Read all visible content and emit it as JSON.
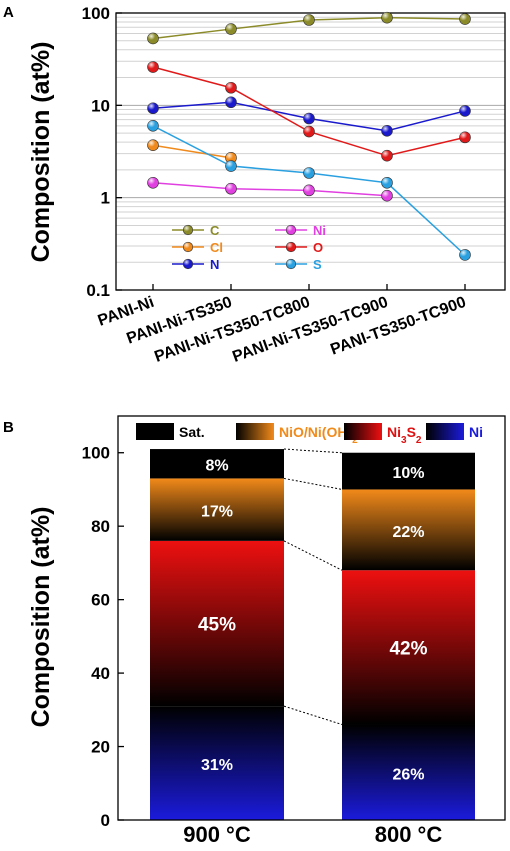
{
  "chart_data": [
    {
      "panel": "A",
      "type": "line",
      "ylabel": "Composition (at%)",
      "yscale": "log",
      "ylim": [
        0.1,
        100
      ],
      "yticks": [
        "0.1",
        "1",
        "10",
        "100"
      ],
      "categories": [
        "PANI-Ni",
        "PANI-Ni-TS350",
        "PANI-Ni-TS350-TC800",
        "PANI-Ni-TS350-TC900",
        "PANI-TS350-TC900"
      ],
      "grid": true,
      "legend_position": "lower-left",
      "series": [
        {
          "name": "C",
          "color": "#8b8b2a",
          "values": [
            53,
            67,
            84,
            89,
            86
          ]
        },
        {
          "name": "Cl",
          "color": "#f08a1c",
          "values": [
            3.7,
            2.7,
            null,
            null,
            null
          ]
        },
        {
          "name": "N",
          "color": "#1a1acc",
          "values": [
            9.3,
            10.8,
            7.2,
            5.3,
            8.7
          ]
        },
        {
          "name": "Ni",
          "color": "#e040e0",
          "values": [
            1.45,
            1.25,
            1.2,
            1.05,
            null
          ]
        },
        {
          "name": "O",
          "color": "#e01a1a",
          "values": [
            26,
            15.5,
            5.2,
            2.85,
            4.5
          ]
        },
        {
          "name": "S",
          "color": "#2aa0e0",
          "values": [
            6.0,
            2.2,
            1.85,
            1.45,
            0.24
          ]
        }
      ]
    },
    {
      "panel": "B",
      "type": "bar",
      "stacked": true,
      "ylabel": "Composition (at%)",
      "ylim": [
        0,
        110
      ],
      "yticks": [
        "0",
        "20",
        "40",
        "60",
        "80",
        "100"
      ],
      "categories": [
        "900 °C",
        "800 °C"
      ],
      "legend_position": "top",
      "series": [
        {
          "name": "Ni",
          "name_main": "Ni",
          "name_sub": "",
          "name_rest": "",
          "name_sub2": "",
          "color": "#1b1bdc",
          "text_color": "#1b1bdc",
          "values": [
            31,
            26
          ],
          "labels": [
            "31%",
            "26%"
          ]
        },
        {
          "name": "Ni3S2",
          "name_main": "Ni",
          "name_sub": "3",
          "name_rest": "S",
          "name_sub2": "2",
          "color": "#ee1010",
          "text_color": "#e01010",
          "values": [
            45,
            42
          ],
          "labels": [
            "45%",
            "42%"
          ]
        },
        {
          "name": "NiO/Ni(OH)2",
          "name_main": "NiO/Ni(OH)",
          "name_sub": "2",
          "name_rest": "",
          "name_sub2": "",
          "color": "#f28a1a",
          "text_color": "#f08a1a",
          "values": [
            17,
            22
          ],
          "labels": [
            "17%",
            "22%"
          ]
        },
        {
          "name": "Sat.",
          "name_main": "Sat.",
          "name_sub": "",
          "name_rest": "",
          "name_sub2": "",
          "color": "#000000",
          "text_color": "#000000",
          "values": [
            8,
            10
          ],
          "labels": [
            "8%",
            "10%"
          ]
        }
      ]
    }
  ]
}
